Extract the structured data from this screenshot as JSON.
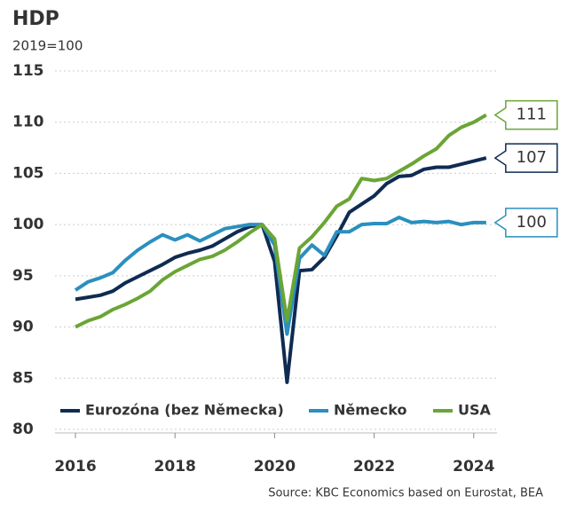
{
  "chart_data": {
    "type": "line",
    "title": "HDP",
    "subtitle": "2019=100",
    "source": "Source: KBC Economics based on Eurostat, BEA",
    "x": [
      2016,
      2016.25,
      2016.5,
      2016.75,
      2017,
      2017.25,
      2017.5,
      2017.75,
      2018,
      2018.25,
      2018.5,
      2018.75,
      2019,
      2019.25,
      2019.5,
      2019.75,
      2020,
      2020.25,
      2020.5,
      2020.75,
      2021,
      2021.25,
      2021.5,
      2021.75,
      2022,
      2022.25,
      2022.5,
      2022.75,
      2023,
      2023.25,
      2023.5,
      2023.75,
      2024,
      2024.25
    ],
    "xlim": [
      2015.8,
      2024.8
    ],
    "xticks": [
      2016,
      2018,
      2020,
      2022,
      2024
    ],
    "ylim": [
      80,
      115
    ],
    "yticks": [
      80,
      85,
      90,
      95,
      100,
      105,
      110,
      115
    ],
    "grid": true,
    "legend": "bottom",
    "series": [
      {
        "name": "Eurozóna (bez Německa)",
        "color": "#0f2b52",
        "end_label": "107",
        "values": [
          92.7,
          92.9,
          93.1,
          93.5,
          94.3,
          94.9,
          95.5,
          96.1,
          96.8,
          97.2,
          97.5,
          97.9,
          98.6,
          99.3,
          99.8,
          100.0,
          96.4,
          84.6,
          95.5,
          95.6,
          96.8,
          98.9,
          101.2,
          102.0,
          102.8,
          104.0,
          104.7,
          104.8,
          105.4,
          105.6,
          105.6,
          105.9,
          106.2,
          106.5
        ]
      },
      {
        "name": "Německo",
        "color": "#2b8fbf",
        "end_label": "100",
        "values": [
          93.6,
          94.4,
          94.8,
          95.3,
          96.5,
          97.5,
          98.3,
          99.0,
          98.5,
          99.0,
          98.4,
          99.0,
          99.6,
          99.8,
          100.0,
          100.0,
          98.0,
          89.3,
          96.7,
          98.0,
          97.0,
          99.3,
          99.3,
          100.0,
          100.1,
          100.1,
          100.7,
          100.2,
          100.3,
          100.2,
          100.3,
          100.0,
          100.2,
          100.2
        ]
      },
      {
        "name": "USA",
        "color": "#6aa535",
        "end_label": "111",
        "values": [
          90.0,
          90.6,
          91.0,
          91.7,
          92.2,
          92.8,
          93.5,
          94.6,
          95.4,
          96.0,
          96.6,
          96.9,
          97.5,
          98.3,
          99.2,
          100.0,
          98.6,
          90.6,
          97.7,
          98.8,
          100.2,
          101.8,
          102.5,
          104.5,
          104.3,
          104.5,
          105.2,
          105.9,
          106.7,
          107.4,
          108.7,
          109.5,
          110.0,
          110.7
        ]
      }
    ]
  }
}
